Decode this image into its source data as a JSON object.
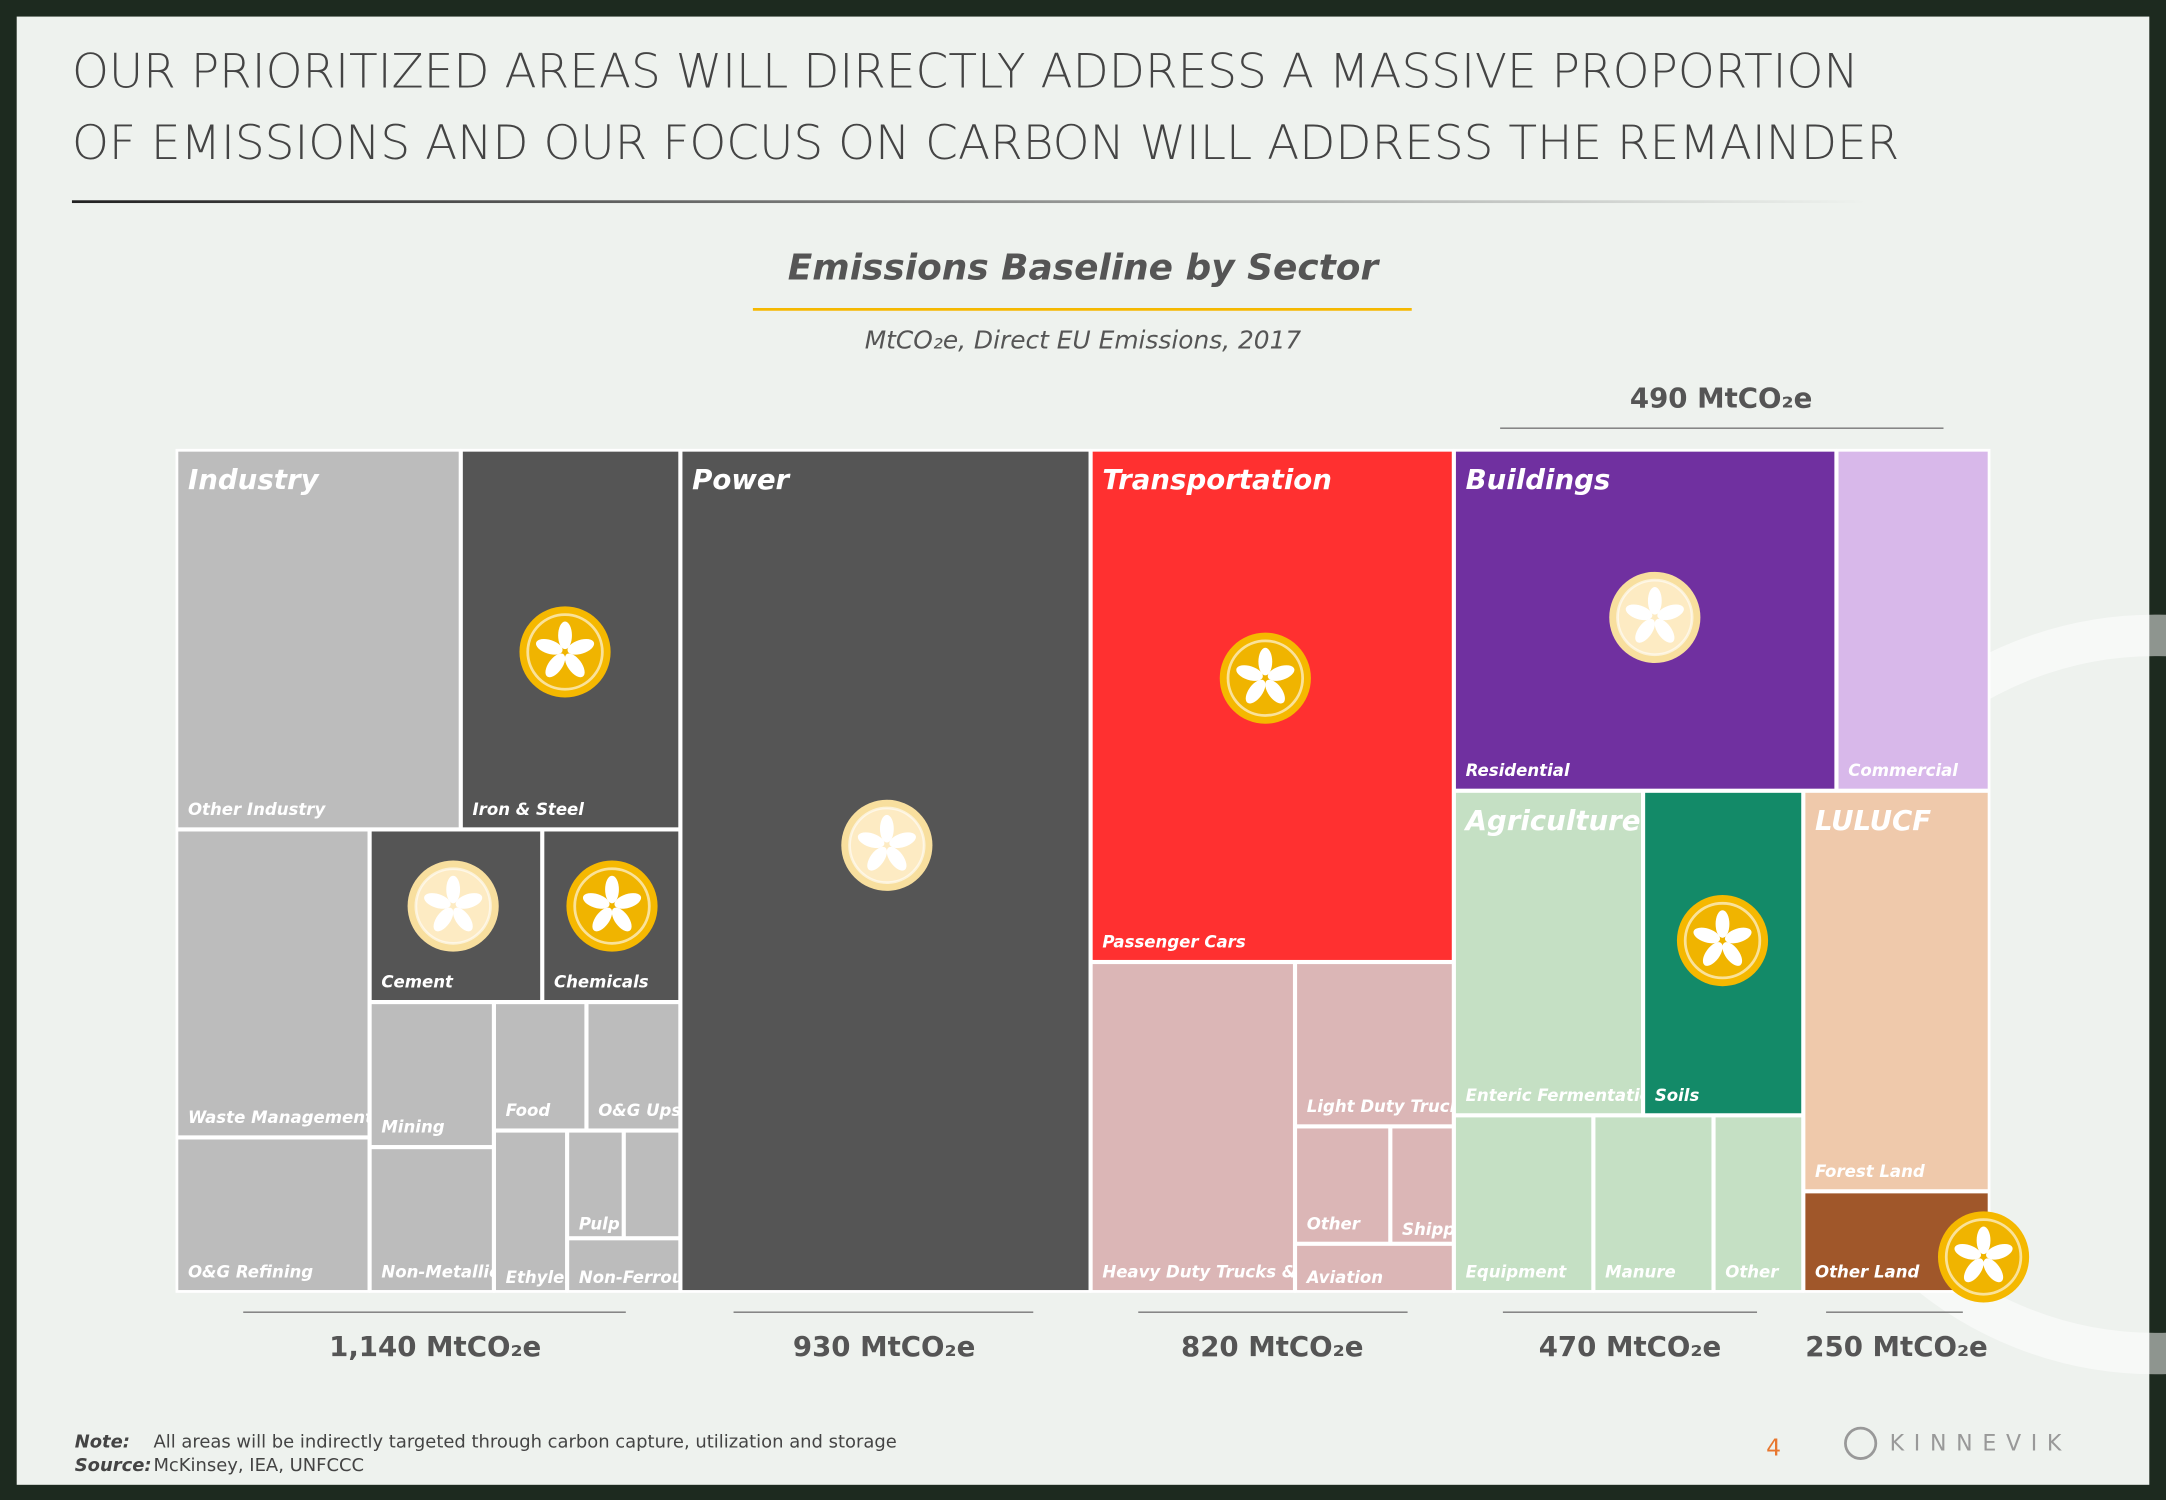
{
  "header": {
    "title_lines": [
      "OUR PRIORITIZED AREAS WILL DIRECTLY ADDRESS A MASSIVE PROPORTION",
      "OF EMISSIONS AND OUR FOCUS ON CARBON WILL ADDRESS THE REMAINDER"
    ]
  },
  "chart": {
    "title": "Emissions Baseline by Sector",
    "subtitle": "MtCO₂e, Direct EU Emissions, 2017",
    "totals": [
      "490 MtCO₂e",
      "1,140 MtCO₂e",
      "930 MtCO₂e",
      "820 MtCO₂e",
      "470 MtCO₂e",
      "250 MtCO₂e"
    ],
    "sectors": [
      {
        "name": "Industry",
        "cells": [
          {
            "label": "Other Industry",
            "color": "#bcbcbc"
          },
          {
            "label": "Iron & Steel",
            "color": "#555555",
            "icon": "yellow"
          },
          {
            "label": "Waste Management",
            "color": "#bcbcbc"
          },
          {
            "label": "Cement",
            "color": "#555555",
            "icon": "cream"
          },
          {
            "label": "Chemicals",
            "color": "#555555",
            "icon": "yellow"
          },
          {
            "label": "O&G Refining",
            "color": "#bcbcbc"
          },
          {
            "label": "Mining",
            "color": "#bcbcbc"
          },
          {
            "label": "Food",
            "color": "#bcbcbc"
          },
          {
            "label": "O&G Upstream",
            "color": "#bcbcbc"
          },
          {
            "label": "Non-Metallic Minerals",
            "color": "#bcbcbc"
          },
          {
            "label": "Ethylene",
            "color": "#bcbcbc"
          },
          {
            "label": "Pulp & Paper",
            "color": "#bcbcbc"
          },
          {
            "color": "#bcbcbc"
          },
          {
            "label": "Non-Ferrous Metals",
            "color": "#bcbcbc"
          }
        ]
      },
      {
        "name": "Power",
        "cells": [
          {
            "color": "#555555",
            "icon": "cream"
          }
        ]
      },
      {
        "name": "Transportation",
        "cells": [
          {
            "label": "Passenger Cars",
            "color": "#ff3030",
            "icon": "yellow"
          },
          {
            "label": "Heavy Duty Trucks & Buses",
            "color": "#dbb6b6"
          },
          {
            "label": "Light Duty Trucks",
            "color": "#dbb6b6"
          },
          {
            "label": "Other",
            "color": "#dbb6b6"
          },
          {
            "label": "Shipping",
            "color": "#dbb6b6"
          },
          {
            "label": "Aviation",
            "color": "#dbb6b6"
          }
        ]
      },
      {
        "name": "Buildings",
        "cells": [
          {
            "label": "Residential",
            "color": "#7030a0",
            "icon": "cream"
          },
          {
            "label": "Commercial",
            "color": "#d8b8ea"
          }
        ]
      },
      {
        "name": "Agriculture",
        "cells": [
          {
            "label": "Enteric Fermentation",
            "color": "#c5e0c4"
          },
          {
            "label": "Soils",
            "color": "#138a68",
            "icon": "yellow"
          },
          {
            "label": "Equipment",
            "color": "#c5e0c4"
          },
          {
            "label": "Manure",
            "color": "#c5e0c4"
          },
          {
            "label": "Other",
            "color": "#c5e0c4"
          }
        ]
      },
      {
        "name": "LULUCF",
        "cells": [
          {
            "label": "Forest Land",
            "color": "#efc9ab"
          },
          {
            "label": "Other Land",
            "color": "#a0572a",
            "icon": "yellow"
          }
        ]
      }
    ]
  },
  "footer": {
    "note_label": "Note:",
    "note": "All areas will be indirectly targeted through carbon capture, utilization and storage",
    "source_label": "Source:",
    "source": "McKinsey, IEA, UNFCCC",
    "page": "4",
    "logo": "KINNEVIK"
  }
}
